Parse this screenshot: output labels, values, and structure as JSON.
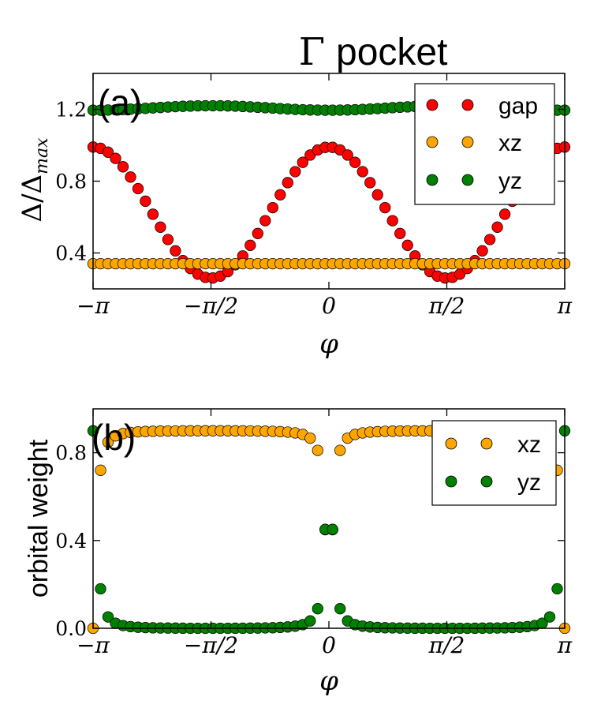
{
  "figure": {
    "title": "Γ pocket",
    "title_symbol": "Γ",
    "title_text": "pocket"
  },
  "chart_data": [
    {
      "panel": "(a)",
      "type": "scatter",
      "xlabel": "φ",
      "ylabel": "Δ/Δmax",
      "ylabel_main": "Δ/Δ",
      "ylabel_sub": "max",
      "xlim": [
        -3.14159,
        3.14159
      ],
      "ylim": [
        0.2,
        1.4
      ],
      "xticks": [
        -3.14159,
        -1.5708,
        0,
        1.5708,
        3.14159
      ],
      "xtick_labels": [
        "−π",
        "−π/2",
        "0",
        "π/2",
        "π"
      ],
      "yticks": [
        0.4,
        0.8,
        1.2
      ],
      "ytick_labels": [
        "0.4",
        "0.8",
        "1.2"
      ],
      "legend": "top-right",
      "series": [
        {
          "name": "gap",
          "color": "#ff0000",
          "formula": "y = 0.625 + 0.365*cos(2x)",
          "x_start": -3.14159,
          "x_end": 3.14159,
          "n": 64
        },
        {
          "name": "xz",
          "color": "#ffa500",
          "formula": "y = 0.34",
          "x_start": -3.14159,
          "x_end": 3.14159,
          "n": 64
        },
        {
          "name": "yz",
          "color": "#008000",
          "formula": "y = 1.195 + 0.025*sin(x)^2",
          "x_start": -3.14159,
          "x_end": 3.14159,
          "n": 64
        }
      ]
    },
    {
      "panel": "(b)",
      "type": "scatter",
      "xlabel": "φ",
      "ylabel": "orbital weight",
      "xlim": [
        -3.14159,
        3.14159
      ],
      "ylim": [
        0.0,
        1.0
      ],
      "xticks": [
        -3.14159,
        -1.5708,
        0,
        1.5708,
        3.14159
      ],
      "xtick_labels": [
        "−π",
        "−π/2",
        "0",
        "π/2",
        "π"
      ],
      "yticks": [
        0.0,
        0.4,
        0.8
      ],
      "ytick_labels": [
        "0.0",
        "0.4",
        "0.8"
      ],
      "legend": "top-right",
      "series": [
        {
          "name": "xz",
          "color": "#ffa500",
          "formula": "y = 0.9*sin(x)^2 / (sin(x)^2 + 0.0025*cos(x)^2)",
          "x_start": -3.14159,
          "x_end": 3.14159,
          "n": 64
        },
        {
          "name": "yz",
          "color": "#008000",
          "formula": "y = 0.9 - xz",
          "x_start": -3.14159,
          "x_end": 3.14159,
          "n": 64
        }
      ]
    }
  ]
}
